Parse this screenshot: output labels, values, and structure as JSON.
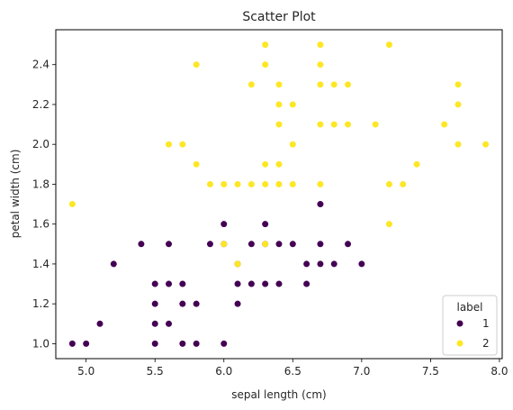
{
  "chart_data": {
    "type": "scatter",
    "title": "Scatter Plot",
    "xlabel": "sepal length (cm)",
    "ylabel": "petal width (cm)",
    "xlim": [
      4.78,
      8.02
    ],
    "ylim": [
      0.925,
      2.575
    ],
    "xticks": [
      5.0,
      5.5,
      6.0,
      6.5,
      7.0,
      7.5,
      8.0
    ],
    "xtick_labels": [
      "5.0",
      "5.5",
      "6.0",
      "6.5",
      "7.0",
      "7.5",
      "8.0"
    ],
    "yticks": [
      1.0,
      1.2,
      1.4,
      1.6,
      1.8,
      2.0,
      2.2,
      2.4
    ],
    "ytick_labels": [
      "1.0",
      "1.2",
      "1.4",
      "1.6",
      "1.8",
      "2.0",
      "2.2",
      "2.4"
    ],
    "grid": false,
    "legend": {
      "title": "label",
      "placement": "lower-right"
    },
    "series": [
      {
        "name": "1",
        "color": "#440154",
        "points": [
          [
            4.9,
            1.0
          ],
          [
            5.0,
            1.0
          ],
          [
            5.5,
            1.0
          ],
          [
            5.7,
            1.0
          ],
          [
            5.8,
            1.0
          ],
          [
            6.0,
            1.0
          ],
          [
            5.1,
            1.1
          ],
          [
            5.5,
            1.1
          ],
          [
            5.6,
            1.1
          ],
          [
            5.5,
            1.2
          ],
          [
            5.7,
            1.2
          ],
          [
            5.8,
            1.2
          ],
          [
            6.1,
            1.2
          ],
          [
            5.5,
            1.3
          ],
          [
            5.6,
            1.3
          ],
          [
            5.7,
            1.3
          ],
          [
            6.1,
            1.3
          ],
          [
            6.2,
            1.3
          ],
          [
            6.3,
            1.3
          ],
          [
            6.4,
            1.3
          ],
          [
            6.6,
            1.3
          ],
          [
            5.2,
            1.4
          ],
          [
            6.1,
            1.4
          ],
          [
            6.6,
            1.4
          ],
          [
            6.7,
            1.4
          ],
          [
            6.8,
            1.4
          ],
          [
            7.0,
            1.4
          ],
          [
            5.4,
            1.5
          ],
          [
            5.6,
            1.5
          ],
          [
            5.9,
            1.5
          ],
          [
            6.0,
            1.5
          ],
          [
            6.2,
            1.5
          ],
          [
            6.3,
            1.5
          ],
          [
            6.4,
            1.5
          ],
          [
            6.5,
            1.5
          ],
          [
            6.7,
            1.5
          ],
          [
            6.9,
            1.5
          ],
          [
            6.0,
            1.6
          ],
          [
            6.3,
            1.6
          ],
          [
            6.7,
            1.7
          ]
        ]
      },
      {
        "name": "2",
        "color": "#fde725",
        "points": [
          [
            6.0,
            1.5
          ],
          [
            6.3,
            1.5
          ],
          [
            6.1,
            1.4
          ],
          [
            7.2,
            1.6
          ],
          [
            4.9,
            1.7
          ],
          [
            5.9,
            1.8
          ],
          [
            6.0,
            1.8
          ],
          [
            6.1,
            1.8
          ],
          [
            6.2,
            1.8
          ],
          [
            6.3,
            1.8
          ],
          [
            6.4,
            1.8
          ],
          [
            6.5,
            1.8
          ],
          [
            6.7,
            1.8
          ],
          [
            7.2,
            1.8
          ],
          [
            7.3,
            1.8
          ],
          [
            5.8,
            1.9
          ],
          [
            6.3,
            1.9
          ],
          [
            6.4,
            1.9
          ],
          [
            7.4,
            1.9
          ],
          [
            5.6,
            2.0
          ],
          [
            5.7,
            2.0
          ],
          [
            6.5,
            2.0
          ],
          [
            7.7,
            2.0
          ],
          [
            7.9,
            2.0
          ],
          [
            6.4,
            2.1
          ],
          [
            6.7,
            2.1
          ],
          [
            6.8,
            2.1
          ],
          [
            6.9,
            2.1
          ],
          [
            7.1,
            2.1
          ],
          [
            7.6,
            2.1
          ],
          [
            6.4,
            2.2
          ],
          [
            6.5,
            2.2
          ],
          [
            7.7,
            2.2
          ],
          [
            6.2,
            2.3
          ],
          [
            6.4,
            2.3
          ],
          [
            6.7,
            2.3
          ],
          [
            6.8,
            2.3
          ],
          [
            6.9,
            2.3
          ],
          [
            7.7,
            2.3
          ],
          [
            5.8,
            2.4
          ],
          [
            6.3,
            2.4
          ],
          [
            6.7,
            2.4
          ],
          [
            6.3,
            2.5
          ],
          [
            6.7,
            2.5
          ],
          [
            7.2,
            2.5
          ]
        ]
      }
    ]
  }
}
